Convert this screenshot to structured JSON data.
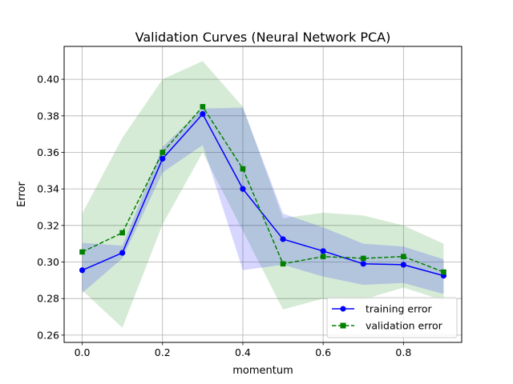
{
  "chart_data": {
    "type": "line",
    "title": "Validation Curves (Neural Network PCA)",
    "xlabel": "momentum",
    "ylabel": "Error",
    "x": [
      0.0,
      0.1,
      0.2,
      0.3,
      0.4,
      0.5,
      0.6,
      0.7,
      0.8,
      0.9
    ],
    "xlim": [
      -0.045,
      0.945
    ],
    "ylim": [
      0.256,
      0.418
    ],
    "xticks": [
      0.0,
      0.2,
      0.4,
      0.6,
      0.8
    ],
    "xtick_labels": [
      "0.0",
      "0.2",
      "0.4",
      "0.6",
      "0.8"
    ],
    "yticks": [
      0.26,
      0.28,
      0.3,
      0.32,
      0.34,
      0.36,
      0.38,
      0.4
    ],
    "ytick_labels": [
      "0.26",
      "0.28",
      "0.30",
      "0.32",
      "0.34",
      "0.36",
      "0.38",
      "0.40"
    ],
    "grid": true,
    "legend_position": "lower-right",
    "series": [
      {
        "name": "training error",
        "color": "#0000ff",
        "linestyle": "solid",
        "marker": "circle",
        "values": [
          0.2955,
          0.305,
          0.3565,
          0.381,
          0.34,
          0.3125,
          0.306,
          0.299,
          0.2985,
          0.2925
        ],
        "band_lower": [
          0.283,
          0.302,
          0.349,
          0.364,
          0.2955,
          0.2985,
          0.292,
          0.2875,
          0.2885,
          0.2825
        ],
        "band_upper": [
          0.3105,
          0.309,
          0.363,
          0.384,
          0.3845,
          0.3265,
          0.319,
          0.31,
          0.3085,
          0.3015
        ],
        "band_color": "#0000ff"
      },
      {
        "name": "validation error",
        "color": "#008000",
        "linestyle": "dashed",
        "marker": "square",
        "values": [
          0.3055,
          0.316,
          0.36,
          0.385,
          0.351,
          0.299,
          0.303,
          0.302,
          0.303,
          0.2945
        ],
        "band_lower": [
          0.2845,
          0.264,
          0.3205,
          0.36,
          0.317,
          0.274,
          0.28,
          0.2795,
          0.286,
          0.279
        ],
        "band_upper": [
          0.3265,
          0.368,
          0.4,
          0.41,
          0.385,
          0.324,
          0.327,
          0.3255,
          0.32,
          0.31
        ],
        "band_color": "#008000"
      }
    ]
  }
}
